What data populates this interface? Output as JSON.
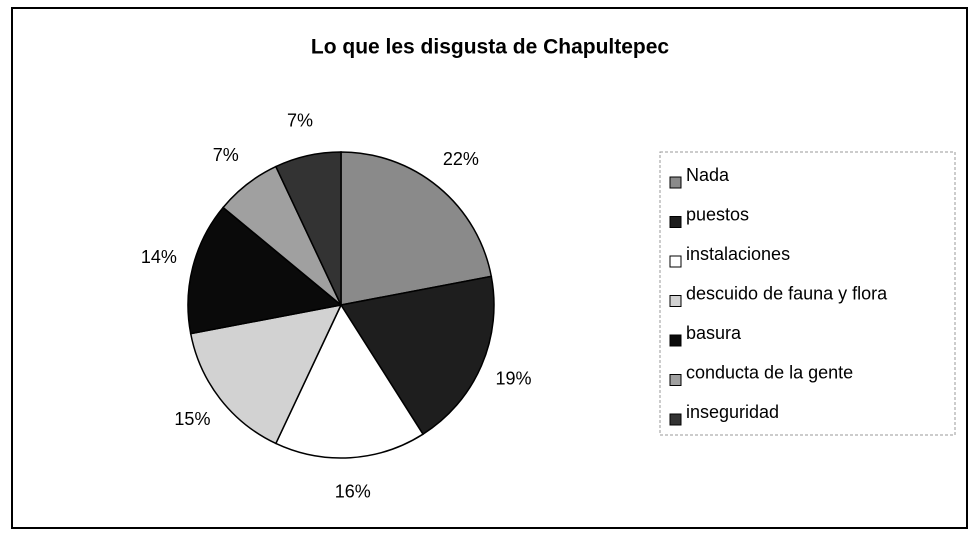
{
  "chart_data": {
    "type": "pie",
    "title": "Lo que les disgusta de Chapultepec",
    "categories": [
      "Nada",
      "puestos",
      "instalaciones",
      "descuido de fauna y flora",
      "basura",
      "conducta de la gente",
      "inseguridad"
    ],
    "values": [
      22,
      19,
      16,
      15,
      14,
      7,
      7
    ],
    "value_labels": [
      "22%",
      "19%",
      "16%",
      "15%",
      "14%",
      "7%",
      "7%"
    ],
    "colors": [
      "#8a8a8a",
      "#1e1e1e",
      "#ffffff",
      "#d2d2d2",
      "#0a0a0a",
      "#a0a0a0",
      "#333333"
    ],
    "legend": "right"
  }
}
